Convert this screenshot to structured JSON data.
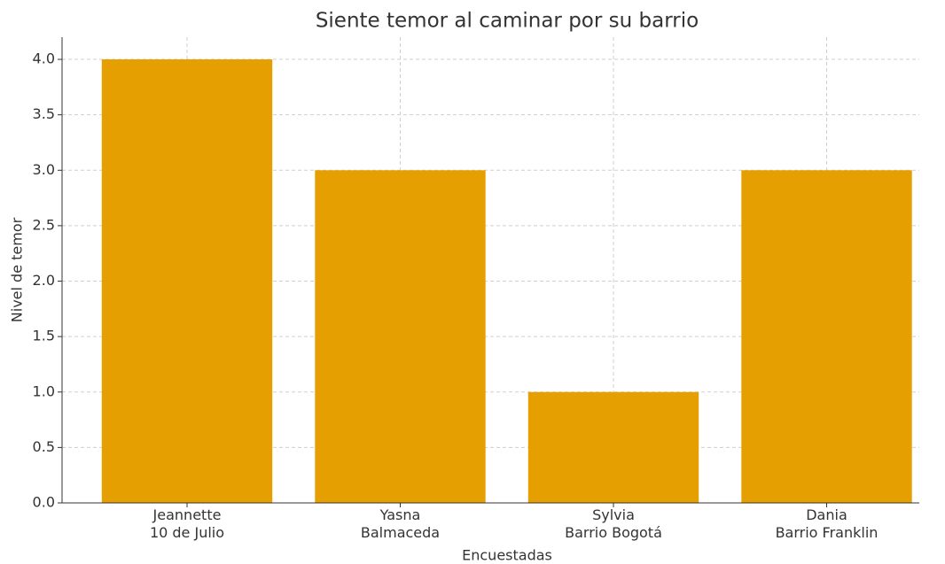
{
  "chart_data": {
    "type": "bar",
    "title": "Siente temor al caminar por su barrio",
    "xlabel": "Encuestadas",
    "ylabel": "Nivel de temor",
    "categories": [
      "Jeannette\n10 de Julio",
      "Yasna\nBalmaceda",
      "Sylvia\nBarrio Bogotá",
      "Dania\nBarrio Franklin"
    ],
    "values": [
      4,
      3,
      1,
      3
    ],
    "color": "#e69f00",
    "ylim": [
      0,
      4.2
    ],
    "yticks": [
      {
        "value": 0,
        "label": "0.0"
      },
      0.5,
      {
        "value": 1,
        "label": "1.0"
      },
      1.5,
      {
        "value": 2,
        "label": "2.0"
      },
      2.5,
      {
        "value": 3,
        "label": "3.0"
      },
      3.5,
      {
        "value": 4,
        "label": "4.0"
      }
    ],
    "grid": true
  }
}
